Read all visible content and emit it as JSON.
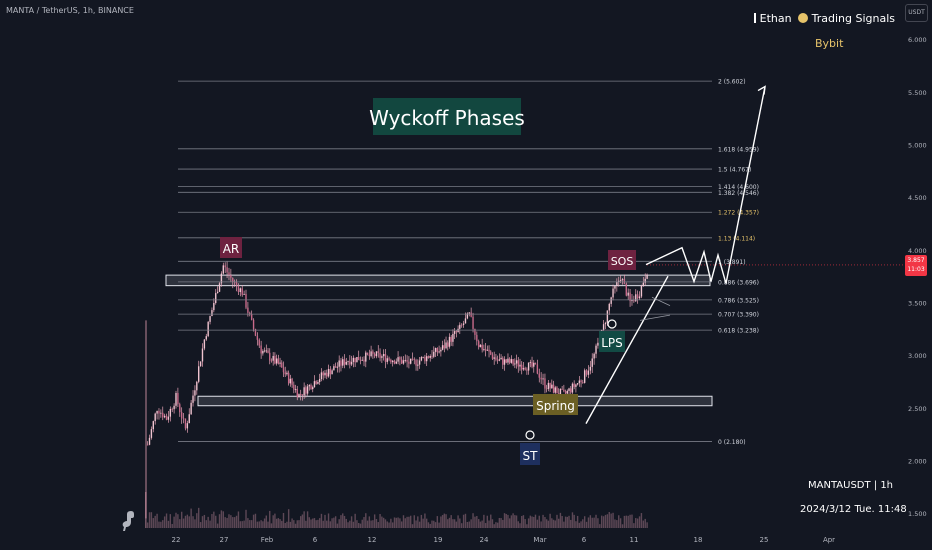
{
  "header": {
    "symbol": "MANTA / TetherUS, 1h, BINANCE"
  },
  "branding": {
    "author": "Ethan",
    "channel": "Trading Signals",
    "exchange": "Bybit",
    "currency_button": "USDT"
  },
  "current_price": {
    "value": "3.857",
    "countdown": "11:03"
  },
  "footer": {
    "ticker": "MANTAUSDT | 1h",
    "datetime": "2024/3/12 Tue. 11:48"
  },
  "colors": {
    "background": "#131722",
    "candle": "#e8a3b6",
    "accent_red": "#f23645",
    "gold": "#e6c36a",
    "fib_line": "#787b86"
  },
  "chart_data": {
    "type": "candlestick",
    "title": "Wyckoff Phases",
    "y_axis": {
      "ticks": [
        "6.000",
        "5.500",
        "5.000",
        "4.500",
        "4.000",
        "3.500",
        "3.000",
        "2.500",
        "2.000",
        "1.500"
      ],
      "range": [
        1.45,
        6.05
      ]
    },
    "x_axis": {
      "ticks": [
        "22",
        "27",
        "Feb",
        "6",
        "12",
        "19",
        "24",
        "Mar",
        "6",
        "11",
        "18",
        "25",
        "Apr"
      ]
    },
    "fib_levels": [
      {
        "label": "2 (5.602)",
        "value": 5.602
      },
      {
        "label": "1.618 (4.959)",
        "value": 4.959
      },
      {
        "label": "1.5 (4.767)",
        "value": 4.767
      },
      {
        "label": "1.414 (4.600)",
        "value": 4.6
      },
      {
        "label": "1.382 (4.546)",
        "value": 4.546
      },
      {
        "label": "1.272 (4.357)",
        "value": 4.357
      },
      {
        "label": "1.13 (4.114)",
        "value": 4.114
      },
      {
        "label": "1 (3.891)",
        "value": 3.891
      },
      {
        "label": "0.886 (3.696)",
        "value": 3.696
      },
      {
        "label": "0.786 (3.525)",
        "value": 3.525
      },
      {
        "label": "0.707 (3.390)",
        "value": 3.39
      },
      {
        "label": "0.618 (3.238)",
        "value": 3.238
      },
      {
        "label": "0 (2.180)",
        "value": 2.18
      }
    ],
    "annotations": [
      {
        "label": "AR",
        "style": "maroon"
      },
      {
        "label": "SOS",
        "style": "maroon"
      },
      {
        "label": "Spring",
        "style": "olive"
      },
      {
        "label": "ST",
        "style": "navy"
      },
      {
        "label": "LPS",
        "style": "teal"
      }
    ],
    "resistance_zone": [
      3.66,
      3.76
    ],
    "support_zone": [
      2.52,
      2.61
    ],
    "price_path": [
      [
        "Jan 19",
        2.15
      ],
      [
        "Jan 20",
        2.5
      ],
      [
        "Jan 21",
        2.4
      ],
      [
        "Jan 22",
        2.6
      ],
      [
        "Jan 23",
        2.3
      ],
      [
        "Jan 24",
        2.7
      ],
      [
        "Jan 25",
        3.15
      ],
      [
        "Jan 26",
        3.5
      ],
      [
        "Jan 27",
        3.85
      ],
      [
        "Jan 28",
        3.7
      ],
      [
        "Jan 29",
        3.6
      ],
      [
        "Jan 30",
        3.3
      ],
      [
        "Jan 31",
        3.05
      ],
      [
        "Feb 2",
        2.9
      ],
      [
        "Feb 4",
        2.62
      ],
      [
        "Feb 6",
        2.78
      ],
      [
        "Feb 9",
        2.95
      ],
      [
        "Feb 12",
        3.0
      ],
      [
        "Feb 16",
        2.92
      ],
      [
        "Feb 19",
        3.05
      ],
      [
        "Feb 21",
        3.25
      ],
      [
        "Feb 22",
        3.38
      ],
      [
        "Feb 23",
        3.1
      ],
      [
        "Feb 25",
        2.95
      ],
      [
        "Feb 27",
        2.92
      ],
      [
        "Feb 29",
        2.88
      ],
      [
        "Mar 1",
        2.72
      ],
      [
        "Mar 3",
        2.62
      ],
      [
        "Mar 5",
        2.78
      ],
      [
        "Mar 6",
        2.95
      ],
      [
        "Mar 7",
        3.2
      ],
      [
        "Mar 8",
        3.55
      ],
      [
        "Mar 9",
        3.75
      ],
      [
        "Mar 10",
        3.5
      ],
      [
        "Mar 11",
        3.6
      ],
      [
        "Mar 12",
        3.86
      ]
    ],
    "projection_path": [
      3.86,
      4.02,
      3.7,
      3.98,
      3.7,
      3.95,
      3.68,
      5.55
    ]
  }
}
